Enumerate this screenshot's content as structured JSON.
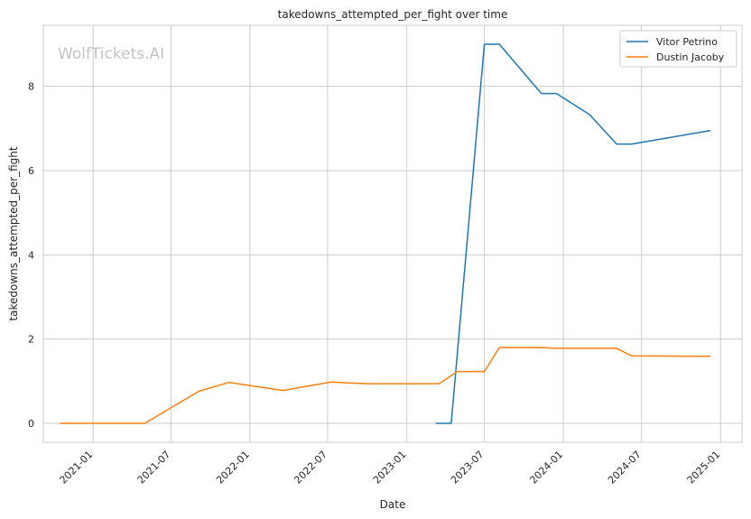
{
  "chart_data": {
    "type": "line",
    "title": "takedowns_attempted_per_fight over time",
    "xlabel": "Date",
    "ylabel": "takedowns_attempted_per_fight",
    "watermark": "WolfTickets.AI",
    "x_ticks": [
      "2021-01",
      "2021-07",
      "2022-01",
      "2022-07",
      "2023-01",
      "2023-07",
      "2024-01",
      "2024-07",
      "2025-01"
    ],
    "y_ticks": [
      0,
      2,
      4,
      6,
      8
    ],
    "xlim": [
      "2020-09-07",
      "2025-02-20"
    ],
    "ylim": [
      -0.45,
      9.45
    ],
    "grid": true,
    "legend_position": "top-right",
    "series": [
      {
        "name": "Vitor Petrino",
        "color": "#1f77b4",
        "points": [
          [
            "2023-03-11",
            0.0
          ],
          [
            "2023-04-15",
            0.0
          ],
          [
            "2023-07-01",
            9.0
          ],
          [
            "2023-08-05",
            9.0
          ],
          [
            "2023-11-11",
            7.83
          ],
          [
            "2023-12-16",
            7.83
          ],
          [
            "2024-03-02",
            7.33
          ],
          [
            "2024-05-04",
            6.63
          ],
          [
            "2024-06-08",
            6.63
          ],
          [
            "2024-12-07",
            6.95
          ]
        ]
      },
      {
        "name": "Dustin Jacoby",
        "color": "#ff7f0e",
        "points": [
          [
            "2020-10-17",
            0.0
          ],
          [
            "2021-05-01",
            0.0
          ],
          [
            "2021-09-04",
            0.76
          ],
          [
            "2021-11-13",
            0.97
          ],
          [
            "2022-03-19",
            0.78
          ],
          [
            "2022-07-09",
            0.98
          ],
          [
            "2022-10-01",
            0.94
          ],
          [
            "2023-03-18",
            0.94
          ],
          [
            "2023-04-29",
            1.23
          ],
          [
            "2023-07-01",
            1.23
          ],
          [
            "2023-08-05",
            1.8
          ],
          [
            "2023-11-11",
            1.8
          ],
          [
            "2023-12-16",
            1.78
          ],
          [
            "2024-05-04",
            1.78
          ],
          [
            "2024-06-08",
            1.6
          ],
          [
            "2024-12-07",
            1.59
          ]
        ]
      }
    ]
  }
}
